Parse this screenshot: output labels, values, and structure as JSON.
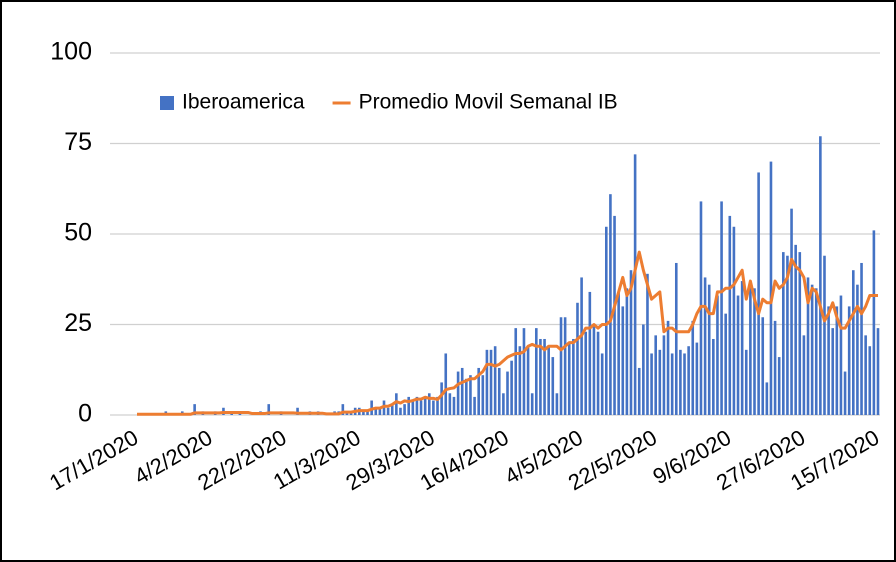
{
  "chart_data": {
    "type": "bar_line",
    "categories": [
      "17/1/2020",
      null,
      null,
      null,
      null,
      null,
      null,
      null,
      null,
      null,
      null,
      null,
      null,
      null,
      null,
      null,
      null,
      null,
      "4/2/2020",
      null,
      null,
      null,
      null,
      null,
      null,
      null,
      null,
      null,
      null,
      null,
      null,
      null,
      null,
      null,
      null,
      null,
      "22/2/2020",
      null,
      null,
      null,
      null,
      null,
      null,
      null,
      null,
      null,
      null,
      null,
      null,
      null,
      null,
      null,
      null,
      null,
      "11/3/2020",
      null,
      null,
      null,
      null,
      null,
      null,
      null,
      null,
      null,
      null,
      null,
      null,
      null,
      null,
      null,
      null,
      null,
      "29/3/2020",
      null,
      null,
      null,
      null,
      null,
      null,
      null,
      null,
      null,
      null,
      null,
      null,
      null,
      null,
      null,
      null,
      null,
      "16/4/2020",
      null,
      null,
      null,
      null,
      null,
      null,
      null,
      null,
      null,
      null,
      null,
      null,
      null,
      null,
      null,
      null,
      null,
      "4/5/2020",
      null,
      null,
      null,
      null,
      null,
      null,
      null,
      null,
      null,
      null,
      null,
      null,
      null,
      null,
      null,
      null,
      null,
      "22/5/2020",
      null,
      null,
      null,
      null,
      null,
      null,
      null,
      null,
      null,
      null,
      null,
      null,
      null,
      null,
      null,
      null,
      null,
      "9/6/2020",
      null,
      null,
      null,
      null,
      null,
      null,
      null,
      null,
      null,
      null,
      null,
      null,
      null,
      null,
      null,
      null,
      null,
      "27/6/2020",
      null,
      null,
      null,
      null,
      null,
      null,
      null,
      null,
      null,
      null,
      null,
      null,
      null,
      null,
      null,
      null,
      null,
      "15/7/2020"
    ],
    "series": [
      {
        "name": "Iberoamerica",
        "type": "bar",
        "color": "#4472c4",
        "values": [
          0,
          0,
          0,
          0,
          0,
          0,
          0,
          1,
          0,
          0,
          0,
          1,
          0,
          0,
          3,
          0,
          1,
          0,
          0,
          1,
          0,
          2,
          0,
          1,
          0,
          1,
          0,
          0,
          0,
          0,
          1,
          0,
          3,
          0,
          0,
          1,
          0,
          0,
          0,
          2,
          0,
          0,
          1,
          0,
          1,
          0,
          0,
          0,
          1,
          1,
          3,
          1,
          1,
          2,
          2,
          1,
          1,
          4,
          2,
          2,
          4,
          2,
          3,
          6,
          2,
          3,
          5,
          4,
          5,
          4,
          5,
          6,
          4,
          5,
          9,
          17,
          6,
          5,
          12,
          13,
          10,
          11,
          5,
          13,
          11,
          18,
          18,
          19,
          13,
          6,
          12,
          15,
          24,
          19,
          24,
          19,
          6,
          24,
          21,
          21,
          19,
          16,
          6,
          27,
          27,
          20,
          21,
          31,
          38,
          23,
          34,
          25,
          23,
          17,
          52,
          61,
          55,
          34,
          30,
          35,
          40,
          72,
          13,
          25,
          39,
          17,
          22,
          18,
          22,
          26,
          17,
          42,
          18,
          17,
          19,
          26,
          20,
          59,
          38,
          36,
          21,
          33,
          59,
          28,
          55,
          52,
          33,
          37,
          18,
          36,
          35,
          67,
          27,
          9,
          70,
          26,
          16,
          45,
          44,
          57,
          47,
          45,
          22,
          38,
          36,
          35,
          77,
          44,
          30,
          24,
          30,
          33,
          12,
          30,
          40,
          36,
          42,
          22,
          19,
          51,
          24
        ]
      },
      {
        "name": "Promedio Movil Semanal IB",
        "type": "line",
        "color": "#ed7d31",
        "values": [
          0.2,
          0.2,
          0.2,
          0.2,
          0.2,
          0.2,
          0.2,
          0.2,
          0.2,
          0.2,
          0.2,
          0.2,
          0.2,
          0.2,
          0.6,
          0.6,
          0.6,
          0.6,
          0.6,
          0.6,
          0.6,
          0.7,
          0.7,
          0.7,
          0.7,
          0.7,
          0.7,
          0.7,
          0.4,
          0.4,
          0.4,
          0.4,
          0.6,
          0.6,
          0.6,
          0.6,
          0.6,
          0.6,
          0.6,
          0.5,
          0.5,
          0.5,
          0.5,
          0.5,
          0.5,
          0.5,
          0.3,
          0.3,
          0.3,
          0.3,
          0.8,
          0.8,
          0.8,
          1,
          1.2,
          1.2,
          1.2,
          1.6,
          1.9,
          1.9,
          2.4,
          2.4,
          2.9,
          3.7,
          3.3,
          3.9,
          3.7,
          4,
          4.4,
          4.4,
          4.9,
          4.6,
          4.6,
          4.3,
          5.5,
          7,
          7.3,
          7.5,
          8.5,
          9,
          9.5,
          10,
          10,
          11,
          12,
          14,
          14,
          13.5,
          14,
          15,
          16,
          16.5,
          17,
          17,
          17.5,
          19,
          19.5,
          19,
          19,
          18,
          19,
          19,
          19,
          18,
          19,
          20,
          20,
          21,
          22,
          24,
          24,
          25,
          24,
          25,
          25,
          26,
          30,
          34,
          38,
          33,
          35,
          40,
          45,
          40,
          36,
          32,
          33,
          34,
          23,
          24,
          24,
          23,
          23,
          23,
          23,
          25,
          28,
          30,
          30,
          28,
          28,
          34,
          34,
          35,
          35,
          36,
          38,
          40,
          32,
          37,
          32,
          28,
          32,
          31,
          31,
          37,
          35,
          36,
          38,
          43,
          41,
          40,
          38,
          31,
          35,
          34,
          30,
          26,
          28,
          31,
          27,
          24,
          24,
          26,
          28,
          30,
          28,
          30,
          33,
          33,
          33
        ]
      }
    ],
    "ylim": [
      0,
      100
    ],
    "yticks": [
      0,
      25,
      50,
      75,
      100
    ],
    "grid": true,
    "legend": "top"
  }
}
